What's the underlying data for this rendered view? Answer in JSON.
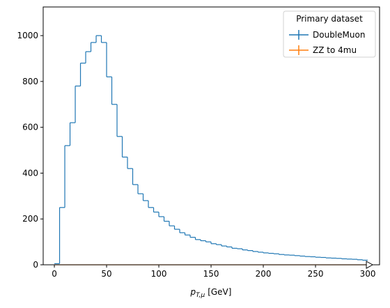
{
  "chart_data": {
    "type": "histogram",
    "x_label": {
      "symbol": "p",
      "subscript": "T,μ",
      "unit": "[GeV]"
    },
    "bins": [
      0,
      5,
      10,
      15,
      20,
      25,
      30,
      35,
      40,
      45,
      50,
      55,
      60,
      65,
      70,
      75,
      80,
      85,
      90,
      95,
      100,
      105,
      110,
      115,
      120,
      125,
      130,
      135,
      140,
      145,
      150,
      155,
      160,
      165,
      170,
      175,
      180,
      185,
      190,
      195,
      200,
      205,
      210,
      215,
      220,
      225,
      230,
      235,
      240,
      245,
      250,
      255,
      260,
      265,
      270,
      275,
      280,
      285,
      290,
      295,
      300
    ],
    "series": [
      {
        "name": "DoubleMuon",
        "color": "#1f77b4",
        "values": [
          5,
          250,
          520,
          620,
          780,
          880,
          930,
          970,
          1000,
          970,
          820,
          700,
          560,
          470,
          420,
          350,
          310,
          280,
          250,
          230,
          210,
          190,
          170,
          155,
          140,
          130,
          120,
          110,
          105,
          100,
          92,
          88,
          82,
          78,
          72,
          70,
          65,
          62,
          58,
          55,
          52,
          50,
          48,
          45,
          43,
          42,
          40,
          38,
          36,
          35,
          33,
          32,
          30,
          29,
          28,
          26,
          25,
          24,
          22,
          20
        ]
      },
      {
        "name": "ZZ to 4mu",
        "color": "#ff7f0e",
        "values": [
          0,
          0,
          0,
          0,
          0,
          0,
          0,
          0,
          0,
          0,
          0,
          0,
          0,
          0,
          0,
          0,
          0,
          0,
          0,
          0,
          0,
          0,
          0,
          0,
          0,
          0,
          0,
          0,
          0,
          0,
          0,
          0,
          0,
          0,
          0,
          0,
          0,
          0,
          0,
          0,
          0,
          0,
          0,
          0,
          0,
          0,
          0,
          0,
          0,
          0,
          0,
          0,
          0,
          0,
          0,
          0,
          0,
          0,
          0,
          0
        ]
      }
    ],
    "legend": {
      "title": "Primary dataset",
      "position": "upper right"
    },
    "xlim": [
      -10.7,
      311.3
    ],
    "xticks": [
      0,
      50,
      100,
      150,
      200,
      250,
      300
    ],
    "ylim": [
      0,
      1125
    ],
    "yticks": [
      0,
      200,
      400,
      600,
      800,
      1000
    ],
    "grid": false
  }
}
